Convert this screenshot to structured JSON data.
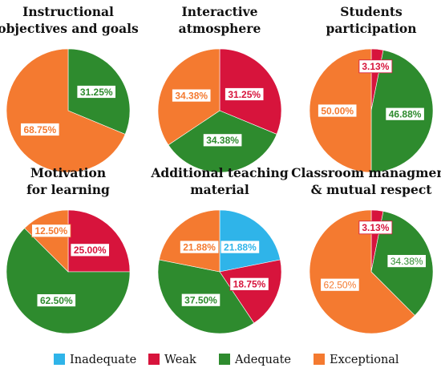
{
  "legend": [
    {
      "label": "Inadequate",
      "color": "#2fb4e9"
    },
    {
      "label": "Weak",
      "color": "#d7143c"
    },
    {
      "label": "Adequate",
      "color": "#2e8b2e"
    },
    {
      "label": "Exceptional",
      "color": "#f47a30"
    }
  ],
  "chart_data": [
    {
      "type": "pie",
      "title_lines": [
        "Instructional",
        "objectives and goals"
      ],
      "slices": [
        {
          "category": "Adequate",
          "value": 31.25,
          "label": "31.25%"
        },
        {
          "category": "Exceptional",
          "value": 68.75,
          "label": "68.75%"
        }
      ]
    },
    {
      "type": "pie",
      "title_lines": [
        "Interactive",
        "atmosphere"
      ],
      "slices": [
        {
          "category": "Weak",
          "value": 31.25,
          "label": "31.25%"
        },
        {
          "category": "Adequate",
          "value": 34.38,
          "label": "34.38%"
        },
        {
          "category": "Exceptional",
          "value": 34.38,
          "label": "34.38%"
        }
      ]
    },
    {
      "type": "pie",
      "title_lines": [
        "Students",
        "participation"
      ],
      "slices": [
        {
          "category": "Weak",
          "value": 3.13,
          "label": "3.13%"
        },
        {
          "category": "Adequate",
          "value": 46.88,
          "label": "46.88%"
        },
        {
          "category": "Exceptional",
          "value": 50.0,
          "label": "50.00%"
        }
      ]
    },
    {
      "type": "pie",
      "title_lines": [
        "Motivation",
        "for learning"
      ],
      "slices": [
        {
          "category": "Weak",
          "value": 25.0,
          "label": "25.00%"
        },
        {
          "category": "Adequate",
          "value": 62.5,
          "label": "62.50%"
        },
        {
          "category": "Exceptional",
          "value": 12.5,
          "label": "12.50%"
        }
      ]
    },
    {
      "type": "pie",
      "title_lines": [
        "Additional teaching",
        "material"
      ],
      "slices": [
        {
          "category": "Inadequate",
          "value": 21.88,
          "label": "21.88%"
        },
        {
          "category": "Weak",
          "value": 18.75,
          "label": "18.75%"
        },
        {
          "category": "Adequate",
          "value": 37.5,
          "label": "37.50%"
        },
        {
          "category": "Exceptional",
          "value": 21.88,
          "label": "21.88%"
        }
      ]
    },
    {
      "type": "pie",
      "title_lines": [
        "Classroom managment",
        "& mutual respect"
      ],
      "slices": [
        {
          "category": "Weak",
          "value": 3.13,
          "label": "3.13%"
        },
        {
          "category": "Adequate",
          "value": 34.38,
          "label": "34.38%"
        },
        {
          "category": "Exceptional",
          "value": 62.5,
          "label": "62.50%"
        }
      ]
    }
  ]
}
